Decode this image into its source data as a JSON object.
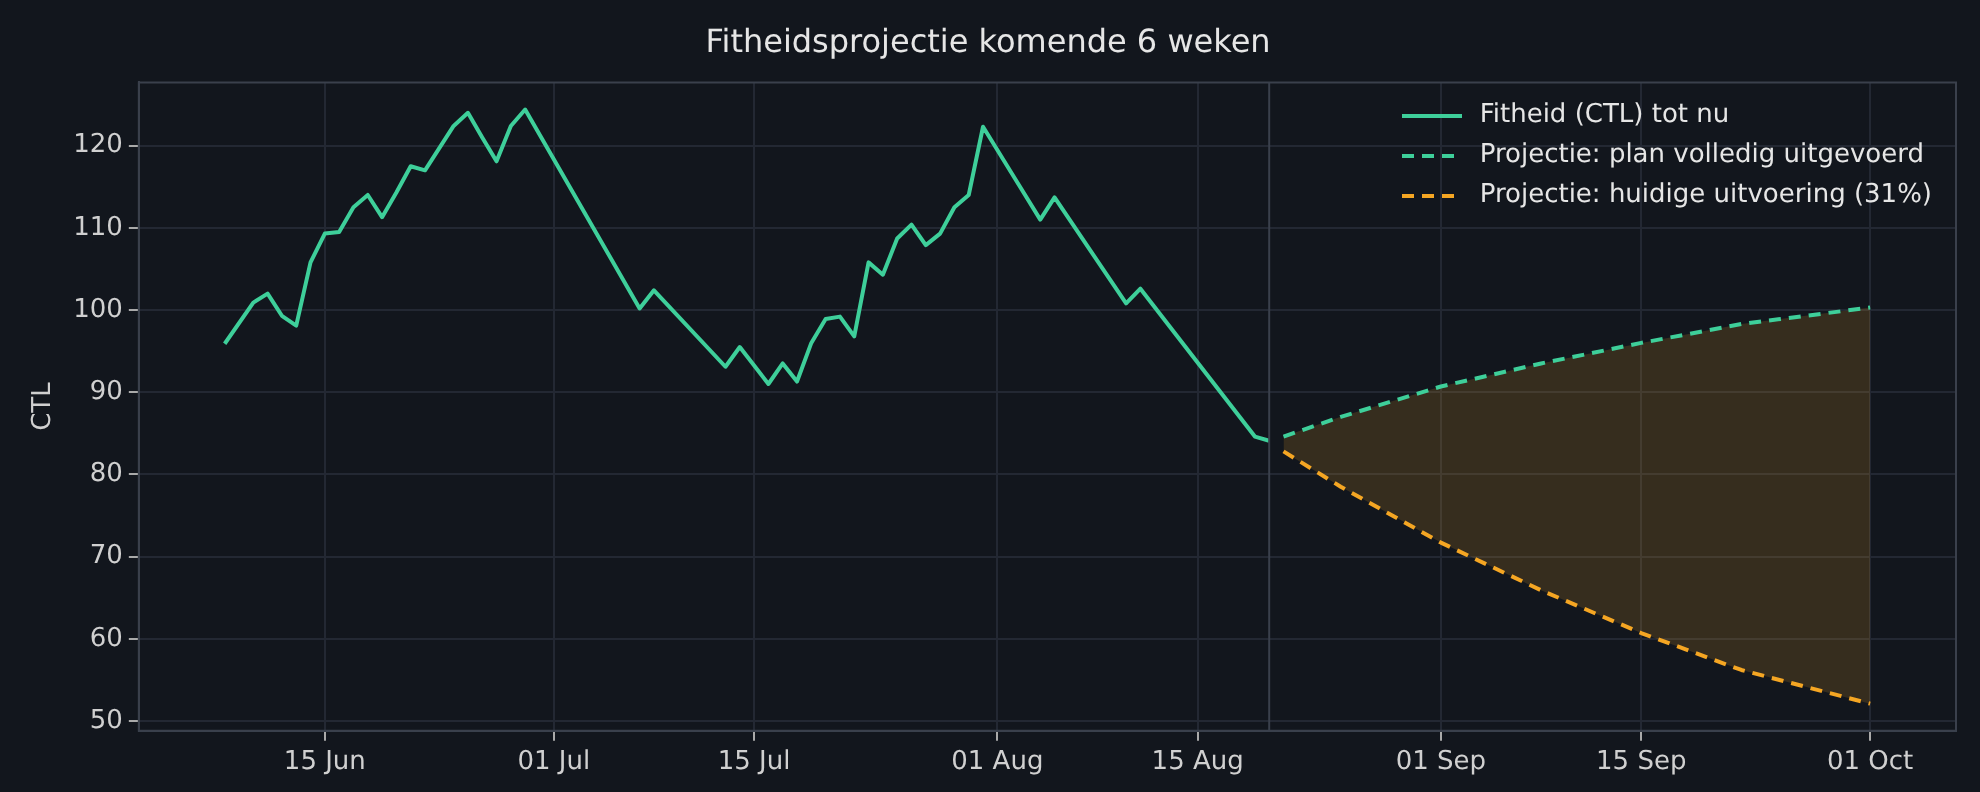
{
  "chart_data": {
    "type": "line",
    "title": "Fitheidsprojectie komende 6 weken",
    "ylabel": "CTL",
    "xlim": [
      "--06-02",
      "--10-07"
    ],
    "ylim": [
      48.8,
      127.7
    ],
    "xticks": [
      {
        "value": "--06-15",
        "label": "15 Jun"
      },
      {
        "value": "--07-01",
        "label": "01 Jul"
      },
      {
        "value": "--07-15",
        "label": "15 Jul"
      },
      {
        "value": "--08-01",
        "label": "01 Aug"
      },
      {
        "value": "--08-15",
        "label": "15 Aug"
      },
      {
        "value": "--09-01",
        "label": "01 Sep"
      },
      {
        "value": "--09-15",
        "label": "15 Sep"
      },
      {
        "value": "--10-01",
        "label": "01 Oct"
      }
    ],
    "yticks": [
      50,
      60,
      70,
      80,
      90,
      100,
      110,
      120
    ],
    "grid": true,
    "legend": "top right",
    "marker": "none",
    "ref_lines": [
      {
        "axis": "x",
        "value": "--08-20",
        "color": "#3a404c"
      }
    ],
    "series": [
      {
        "name": "Fitheid (CTL) tot nu",
        "color": "#3ecf9a",
        "line_style": "solid",
        "x": [
          "--06-08",
          "--06-10",
          "--06-11",
          "--06-12",
          "--06-13",
          "--06-14",
          "--06-15",
          "--06-16",
          "--06-17",
          "--06-18",
          "--06-19",
          "--06-20",
          "--06-21",
          "--06-22",
          "--06-23",
          "--06-24",
          "--06-25",
          "--06-26",
          "--06-27",
          "--06-28",
          "--06-29",
          "--07-07",
          "--07-08",
          "--07-13",
          "--07-14",
          "--07-16",
          "--07-17",
          "--07-18",
          "--07-19",
          "--07-20",
          "--07-21",
          "--07-22",
          "--07-23",
          "--07-24",
          "--07-25",
          "--07-26",
          "--07-27",
          "--07-28",
          "--07-29",
          "--07-30",
          "--07-31",
          "--08-04",
          "--08-05",
          "--08-10",
          "--08-11",
          "--08-19",
          "--08-20"
        ],
        "values": [
          95.9,
          100.9,
          102.0,
          99.3,
          98.1,
          105.8,
          109.3,
          109.5,
          112.5,
          114.0,
          111.3,
          114.3,
          117.5,
          117.0,
          119.7,
          122.4,
          124.0,
          121.0,
          118.1,
          122.4,
          124.4,
          100.2,
          102.4,
          93.1,
          95.5,
          91.0,
          93.5,
          91.3,
          96.0,
          98.9,
          99.2,
          96.8,
          105.8,
          104.3,
          108.7,
          110.4,
          107.9,
          109.3,
          112.5,
          114.0,
          122.3,
          111.0,
          113.7,
          100.8,
          102.6,
          84.6,
          84.1
        ]
      },
      {
        "name": "Projectie: plan volledig uitgevoerd",
        "color": "#3ecf9a",
        "line_style": "dashed",
        "x": [
          "--08-21",
          "--08-25",
          "--09-01",
          "--09-08",
          "--09-15",
          "--09-22",
          "--10-01"
        ],
        "values": [
          84.6,
          87.0,
          90.7,
          93.5,
          96.0,
          98.3,
          100.3
        ]
      },
      {
        "name": "Projectie: huidige uitvoering (31%)",
        "color": "#f5a623",
        "line_style": "dashed",
        "x": [
          "--08-21",
          "--08-25",
          "--09-01",
          "--09-08",
          "--09-15",
          "--09-22",
          "--10-01"
        ],
        "values": [
          82.8,
          78.5,
          71.7,
          65.9,
          60.7,
          56.2,
          52.1
        ],
        "lower": [
          82.8,
          78.5,
          71.7,
          65.9,
          60.7,
          56.2,
          52.1
        ],
        "upper": [
          84.6,
          87.0,
          90.7,
          93.5,
          96.0,
          98.3,
          100.3
        ]
      }
    ]
  }
}
